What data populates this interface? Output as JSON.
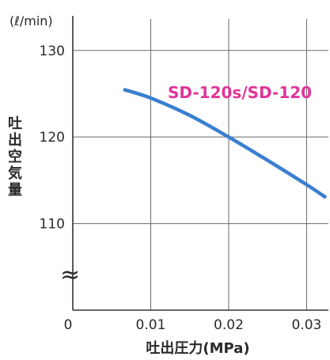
{
  "chart_data": {
    "type": "line",
    "title": "",
    "xlabel": "吐出圧力(MPa)",
    "ylabel_chars": [
      "吐",
      "出",
      "空",
      "気",
      "量"
    ],
    "y_unit": "(ℓ/min)",
    "axis_break": "≈",
    "xlim": [
      0,
      0.033
    ],
    "ylim": [
      100,
      134
    ],
    "x_ticks": [
      0.01,
      0.02,
      0.03
    ],
    "x_tick_labels": [
      "0",
      "0.01",
      "0.02",
      "0.03"
    ],
    "y_ticks": [
      110,
      120,
      130
    ],
    "y_tick_labels": [
      "110",
      "120",
      "130"
    ],
    "grid": true,
    "series": [
      {
        "name": "SD-120s/SD-120",
        "color": "#3a7fd0",
        "label_color": "#e0349a",
        "x": [
          0.0065,
          0.01,
          0.015,
          0.02,
          0.025,
          0.03,
          0.0325
        ],
        "y": [
          125.5,
          124.5,
          122.5,
          120.0,
          117.3,
          114.5,
          113.0
        ]
      }
    ]
  }
}
